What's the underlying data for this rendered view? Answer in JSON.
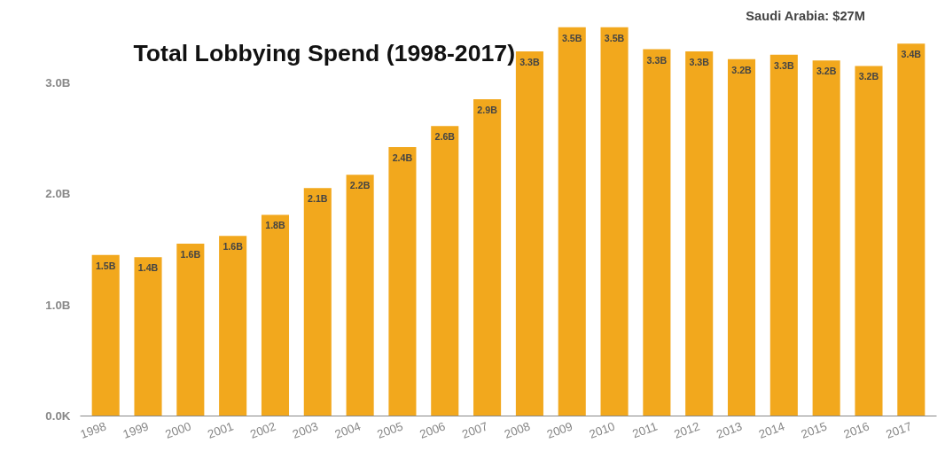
{
  "chart_data": {
    "type": "bar",
    "title": "Total Lobbying Spend (1998-2017)",
    "categories": [
      "1998",
      "1999",
      "2000",
      "2001",
      "2002",
      "2003",
      "2004",
      "2005",
      "2006",
      "2007",
      "2008",
      "2009",
      "2010",
      "2011",
      "2012",
      "2013",
      "2014",
      "2015",
      "2016",
      "2017"
    ],
    "values": [
      1.45,
      1.43,
      1.55,
      1.62,
      1.81,
      2.05,
      2.17,
      2.42,
      2.61,
      2.85,
      3.28,
      3.5,
      3.5,
      3.3,
      3.28,
      3.21,
      3.25,
      3.2,
      3.15,
      3.35
    ],
    "value_labels": [
      "1.5B",
      "1.4B",
      "1.6B",
      "1.6B",
      "1.8B",
      "2.1B",
      "2.2B",
      "2.4B",
      "2.6B",
      "2.9B",
      "3.3B",
      "3.5B",
      "3.5B",
      "3.3B",
      "3.3B",
      "3.2B",
      "3.3B",
      "3.2B",
      "3.2B",
      "3.4B"
    ],
    "color": "#f2a81d",
    "ylim": [
      0,
      3.5
    ],
    "yticks": [
      {
        "value": 0,
        "label": "0.0K"
      },
      {
        "value": 1,
        "label": "1.0B"
      },
      {
        "value": 2,
        "label": "2.0B"
      },
      {
        "value": 3,
        "label": "3.0B"
      }
    ],
    "grid": false,
    "annotations": [
      "Saudi Arabia: $27M"
    ]
  }
}
